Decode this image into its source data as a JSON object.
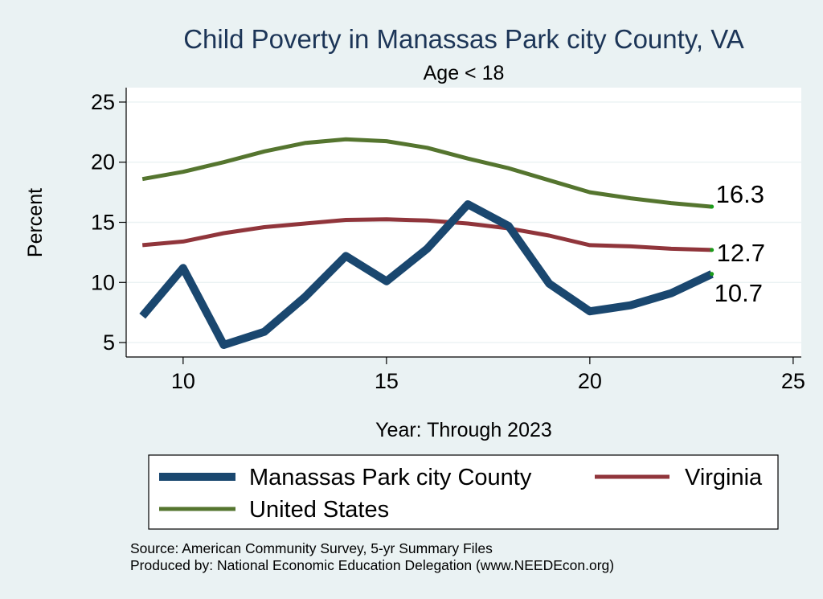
{
  "chart_data": {
    "type": "line",
    "title": "Child Poverty in Manassas Park city County, VA",
    "subtitle": "Age < 18",
    "xlabel": "Year: Through 2023",
    "ylabel": "Percent",
    "xlim": [
      8.6,
      25.2
    ],
    "ylim": [
      3.8,
      26.2
    ],
    "xticks": [
      10,
      15,
      20,
      25
    ],
    "yticks": [
      5,
      10,
      15,
      20,
      25
    ],
    "grid": true,
    "legend_position": "bottom",
    "series": [
      {
        "name": "Manassas Park city County",
        "color": "#1a476f",
        "x": [
          9,
          10,
          11,
          12,
          13,
          14,
          15,
          16,
          17,
          18,
          19,
          20,
          21,
          22,
          23
        ],
        "values": [
          7.2,
          11.2,
          4.8,
          5.9,
          8.8,
          12.2,
          10.1,
          12.8,
          16.5,
          14.7,
          9.9,
          7.6,
          8.1,
          9.1,
          10.7
        ],
        "end_label": "10.7"
      },
      {
        "name": "Virginia",
        "color": "#90353b",
        "x": [
          9,
          10,
          11,
          12,
          13,
          14,
          15,
          16,
          17,
          18,
          19,
          20,
          21,
          22,
          23
        ],
        "values": [
          13.1,
          13.4,
          14.1,
          14.6,
          14.9,
          15.2,
          15.25,
          15.15,
          14.9,
          14.5,
          13.9,
          13.1,
          13.0,
          12.8,
          12.7
        ],
        "end_label": "12.7"
      },
      {
        "name": "United States",
        "color": "#55752f",
        "x": [
          9,
          10,
          11,
          12,
          13,
          14,
          15,
          16,
          17,
          18,
          19,
          20,
          21,
          22,
          23
        ],
        "values": [
          18.6,
          19.2,
          20.0,
          20.9,
          21.6,
          21.9,
          21.75,
          21.2,
          20.3,
          19.5,
          18.5,
          17.5,
          17.0,
          16.6,
          16.3
        ],
        "end_label": "16.3"
      }
    ]
  },
  "source_lines": [
    "Source: American Community Survey, 5-yr Summary Files",
    "Produced by: National Economic Education Delegation (www.NEEDEcon.org)"
  ]
}
